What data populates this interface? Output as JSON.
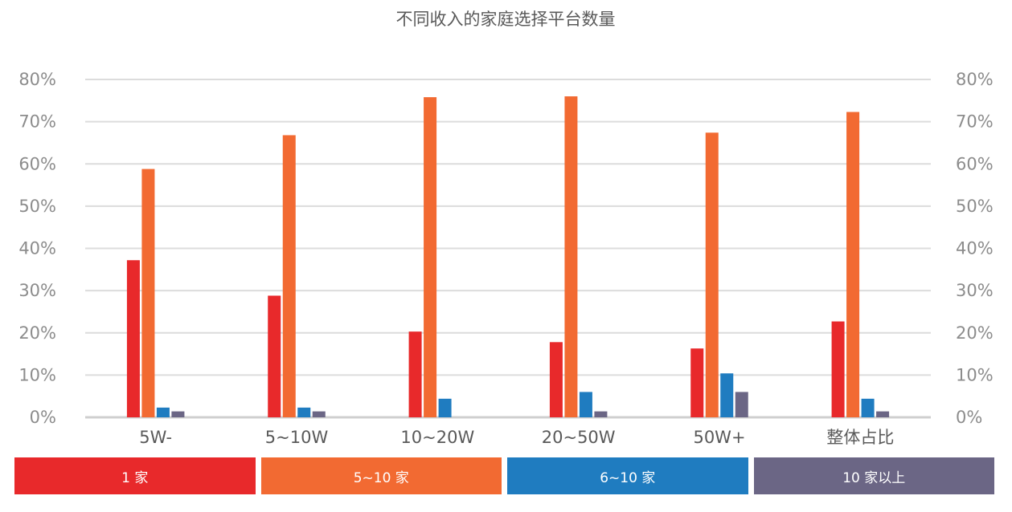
{
  "chart_data": {
    "type": "bar",
    "title": "不同收入的家庭选择平台数量",
    "categories": [
      "5W-",
      "5~10W",
      "10~20W",
      "20~50W",
      "50W+",
      "整体占比"
    ],
    "series": [
      {
        "name": "1 家",
        "color": "#E8292B",
        "values": [
          37.2,
          28.8,
          20.3,
          17.8,
          16.3,
          22.7
        ]
      },
      {
        "name": "5~10 家",
        "color": "#F26A32",
        "values": [
          58.8,
          66.8,
          75.8,
          76.0,
          67.4,
          72.3
        ]
      },
      {
        "name": "6~10 家",
        "color": "#1F7CC0",
        "values": [
          2.3,
          2.3,
          4.4,
          6.0,
          10.4,
          4.4
        ]
      },
      {
        "name": "10 家以上",
        "color": "#6B6685",
        "values": [
          1.4,
          1.4,
          0,
          1.4,
          6.0,
          1.4
        ]
      }
    ],
    "y_ticks": [
      "0%",
      "10%",
      "20%",
      "30%",
      "40%",
      "50%",
      "60%",
      "70%",
      "80%"
    ],
    "ylim": [
      0,
      80
    ],
    "grid": true,
    "legend_position": "bottom"
  }
}
